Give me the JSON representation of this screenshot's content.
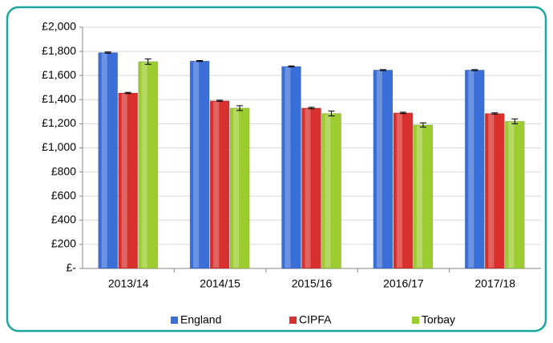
{
  "chart_data": {
    "type": "bar",
    "categories": [
      "2013/14",
      "2014/15",
      "2015/16",
      "2016/17",
      "2017/18"
    ],
    "series": [
      {
        "name": "England",
        "color": "#3a6fd8",
        "values": [
          1790,
          1720,
          1675,
          1645,
          1645
        ],
        "errors": [
          5,
          4,
          4,
          4,
          4
        ]
      },
      {
        "name": "CIPFA",
        "color": "#d8302c",
        "values": [
          1455,
          1390,
          1330,
          1290,
          1285
        ],
        "errors": [
          5,
          5,
          6,
          6,
          6
        ]
      },
      {
        "name": "Torbay",
        "color": "#9ccc30",
        "values": [
          1715,
          1330,
          1285,
          1190,
          1220
        ],
        "errors": [
          22,
          20,
          20,
          18,
          20
        ]
      }
    ],
    "ylim": [
      0,
      2000
    ],
    "yticks": [
      {
        "value": 0,
        "label": "£-"
      },
      {
        "value": 200,
        "label": "£200"
      },
      {
        "value": 400,
        "label": "£400"
      },
      {
        "value": 600,
        "label": "£600"
      },
      {
        "value": 800,
        "label": "£800"
      },
      {
        "value": 1000,
        "label": "£1,000"
      },
      {
        "value": 1200,
        "label": "£1,200"
      },
      {
        "value": 1400,
        "label": "£1,400"
      },
      {
        "value": 1600,
        "label": "£1,600"
      },
      {
        "value": 1800,
        "label": "£1,800"
      },
      {
        "value": 2000,
        "label": "£2,000"
      }
    ],
    "grid": true
  }
}
